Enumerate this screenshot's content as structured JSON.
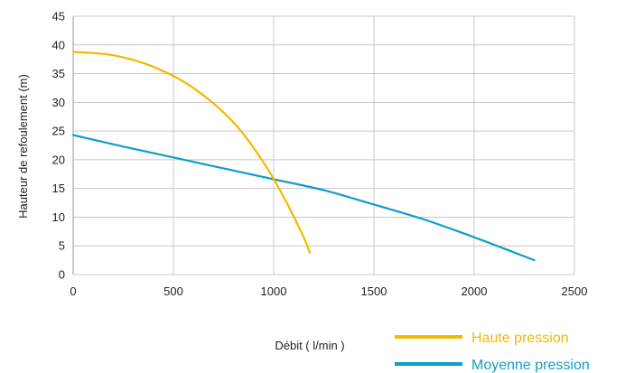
{
  "chart_data": {
    "type": "line",
    "title": "",
    "xlabel": "Débit ( l/min )",
    "ylabel": "Hauteur de refoulement (m)",
    "xlim": [
      0,
      2500
    ],
    "ylim": [
      0,
      45
    ],
    "x_ticks": [
      "0",
      "500",
      "1000",
      "1500",
      "2000",
      "2500"
    ],
    "y_ticks": [
      "0",
      "5",
      "10",
      "15",
      "20",
      "25",
      "30",
      "35",
      "40",
      "45"
    ],
    "grid": true,
    "legend_position": "bottom-right",
    "series": [
      {
        "name": "Haute pression",
        "color": "#f5b800",
        "points": [
          [
            0,
            38.8
          ],
          [
            200,
            38.2
          ],
          [
            400,
            36.2
          ],
          [
            600,
            32.5
          ],
          [
            800,
            26.5
          ],
          [
            950,
            19.5
          ],
          [
            1050,
            13.5
          ],
          [
            1150,
            6.5
          ],
          [
            1180,
            3.8
          ]
        ]
      },
      {
        "name": "Moyenne pression",
        "color": "#0e9ec9",
        "points": [
          [
            0,
            24.3
          ],
          [
            250,
            22.3
          ],
          [
            500,
            20.4
          ],
          [
            750,
            18.5
          ],
          [
            1000,
            16.6
          ],
          [
            1250,
            14.7
          ],
          [
            1500,
            12.2
          ],
          [
            1750,
            9.6
          ],
          [
            2000,
            6.5
          ],
          [
            2300,
            2.5
          ]
        ]
      }
    ]
  }
}
